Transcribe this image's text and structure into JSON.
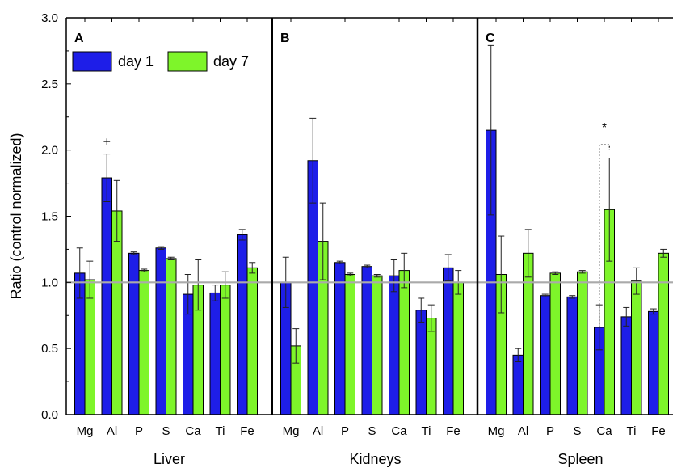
{
  "chart_data": {
    "type": "bar",
    "ylabel": "Ratio (control normalized)",
    "ylim": [
      0,
      3.0
    ],
    "yticks": [
      "0.0",
      "0.5",
      "1.0",
      "1.5",
      "2.0",
      "2.5",
      "3.0"
    ],
    "reference_line": 1.0,
    "categories": [
      "Mg",
      "Al",
      "P",
      "S",
      "Ca",
      "Ti",
      "Fe"
    ],
    "legend": {
      "placement": "top-left",
      "entries": [
        "day 1",
        "day 7"
      ]
    },
    "colors": {
      "day1": "#1e1ee8",
      "day7": "#7ef52a",
      "reference": "#aaaaaa"
    },
    "panels": [
      {
        "letter": "A",
        "name": "Liver",
        "series": [
          {
            "name": "day 1",
            "values": [
              1.07,
              1.79,
              1.22,
              1.26,
              0.91,
              0.92,
              1.36
            ],
            "errors": [
              0.19,
              0.18,
              0.01,
              0.01,
              0.15,
              0.06,
              0.04
            ]
          },
          {
            "name": "day 7",
            "values": [
              1.02,
              1.54,
              1.09,
              1.18,
              0.98,
              0.98,
              1.11
            ],
            "errors": [
              0.14,
              0.23,
              0.01,
              0.01,
              0.19,
              0.1,
              0.04
            ]
          }
        ],
        "annotations": [
          {
            "text": "+",
            "category": "Al"
          }
        ]
      },
      {
        "letter": "B",
        "name": "Kidneys",
        "series": [
          {
            "name": "day 1",
            "values": [
              1.0,
              1.92,
              1.15,
              1.12,
              1.05,
              0.79,
              1.11
            ],
            "errors": [
              0.19,
              0.32,
              0.01,
              0.01,
              0.12,
              0.09,
              0.1
            ]
          },
          {
            "name": "day 7",
            "values": [
              0.52,
              1.31,
              1.06,
              1.05,
              1.09,
              0.73,
              1.0
            ],
            "errors": [
              0.13,
              0.29,
              0.01,
              0.01,
              0.13,
              0.1,
              0.09
            ]
          }
        ],
        "annotations": []
      },
      {
        "letter": "C",
        "name": "Spleen",
        "series": [
          {
            "name": "day 1",
            "values": [
              2.15,
              0.45,
              0.9,
              0.89,
              0.66,
              0.74,
              0.78
            ],
            "errors": [
              0.64,
              0.05,
              0.01,
              0.01,
              0.17,
              0.07,
              0.02
            ]
          },
          {
            "name": "day 7",
            "values": [
              1.06,
              1.22,
              1.07,
              1.08,
              1.55,
              1.01,
              1.22
            ],
            "errors": [
              0.29,
              0.18,
              0.01,
              0.01,
              0.39,
              0.1,
              0.03
            ]
          }
        ],
        "annotations": [
          {
            "text": "*",
            "category": "Ca",
            "bracket": [
              0.66,
              2.04
            ]
          }
        ]
      }
    ]
  }
}
